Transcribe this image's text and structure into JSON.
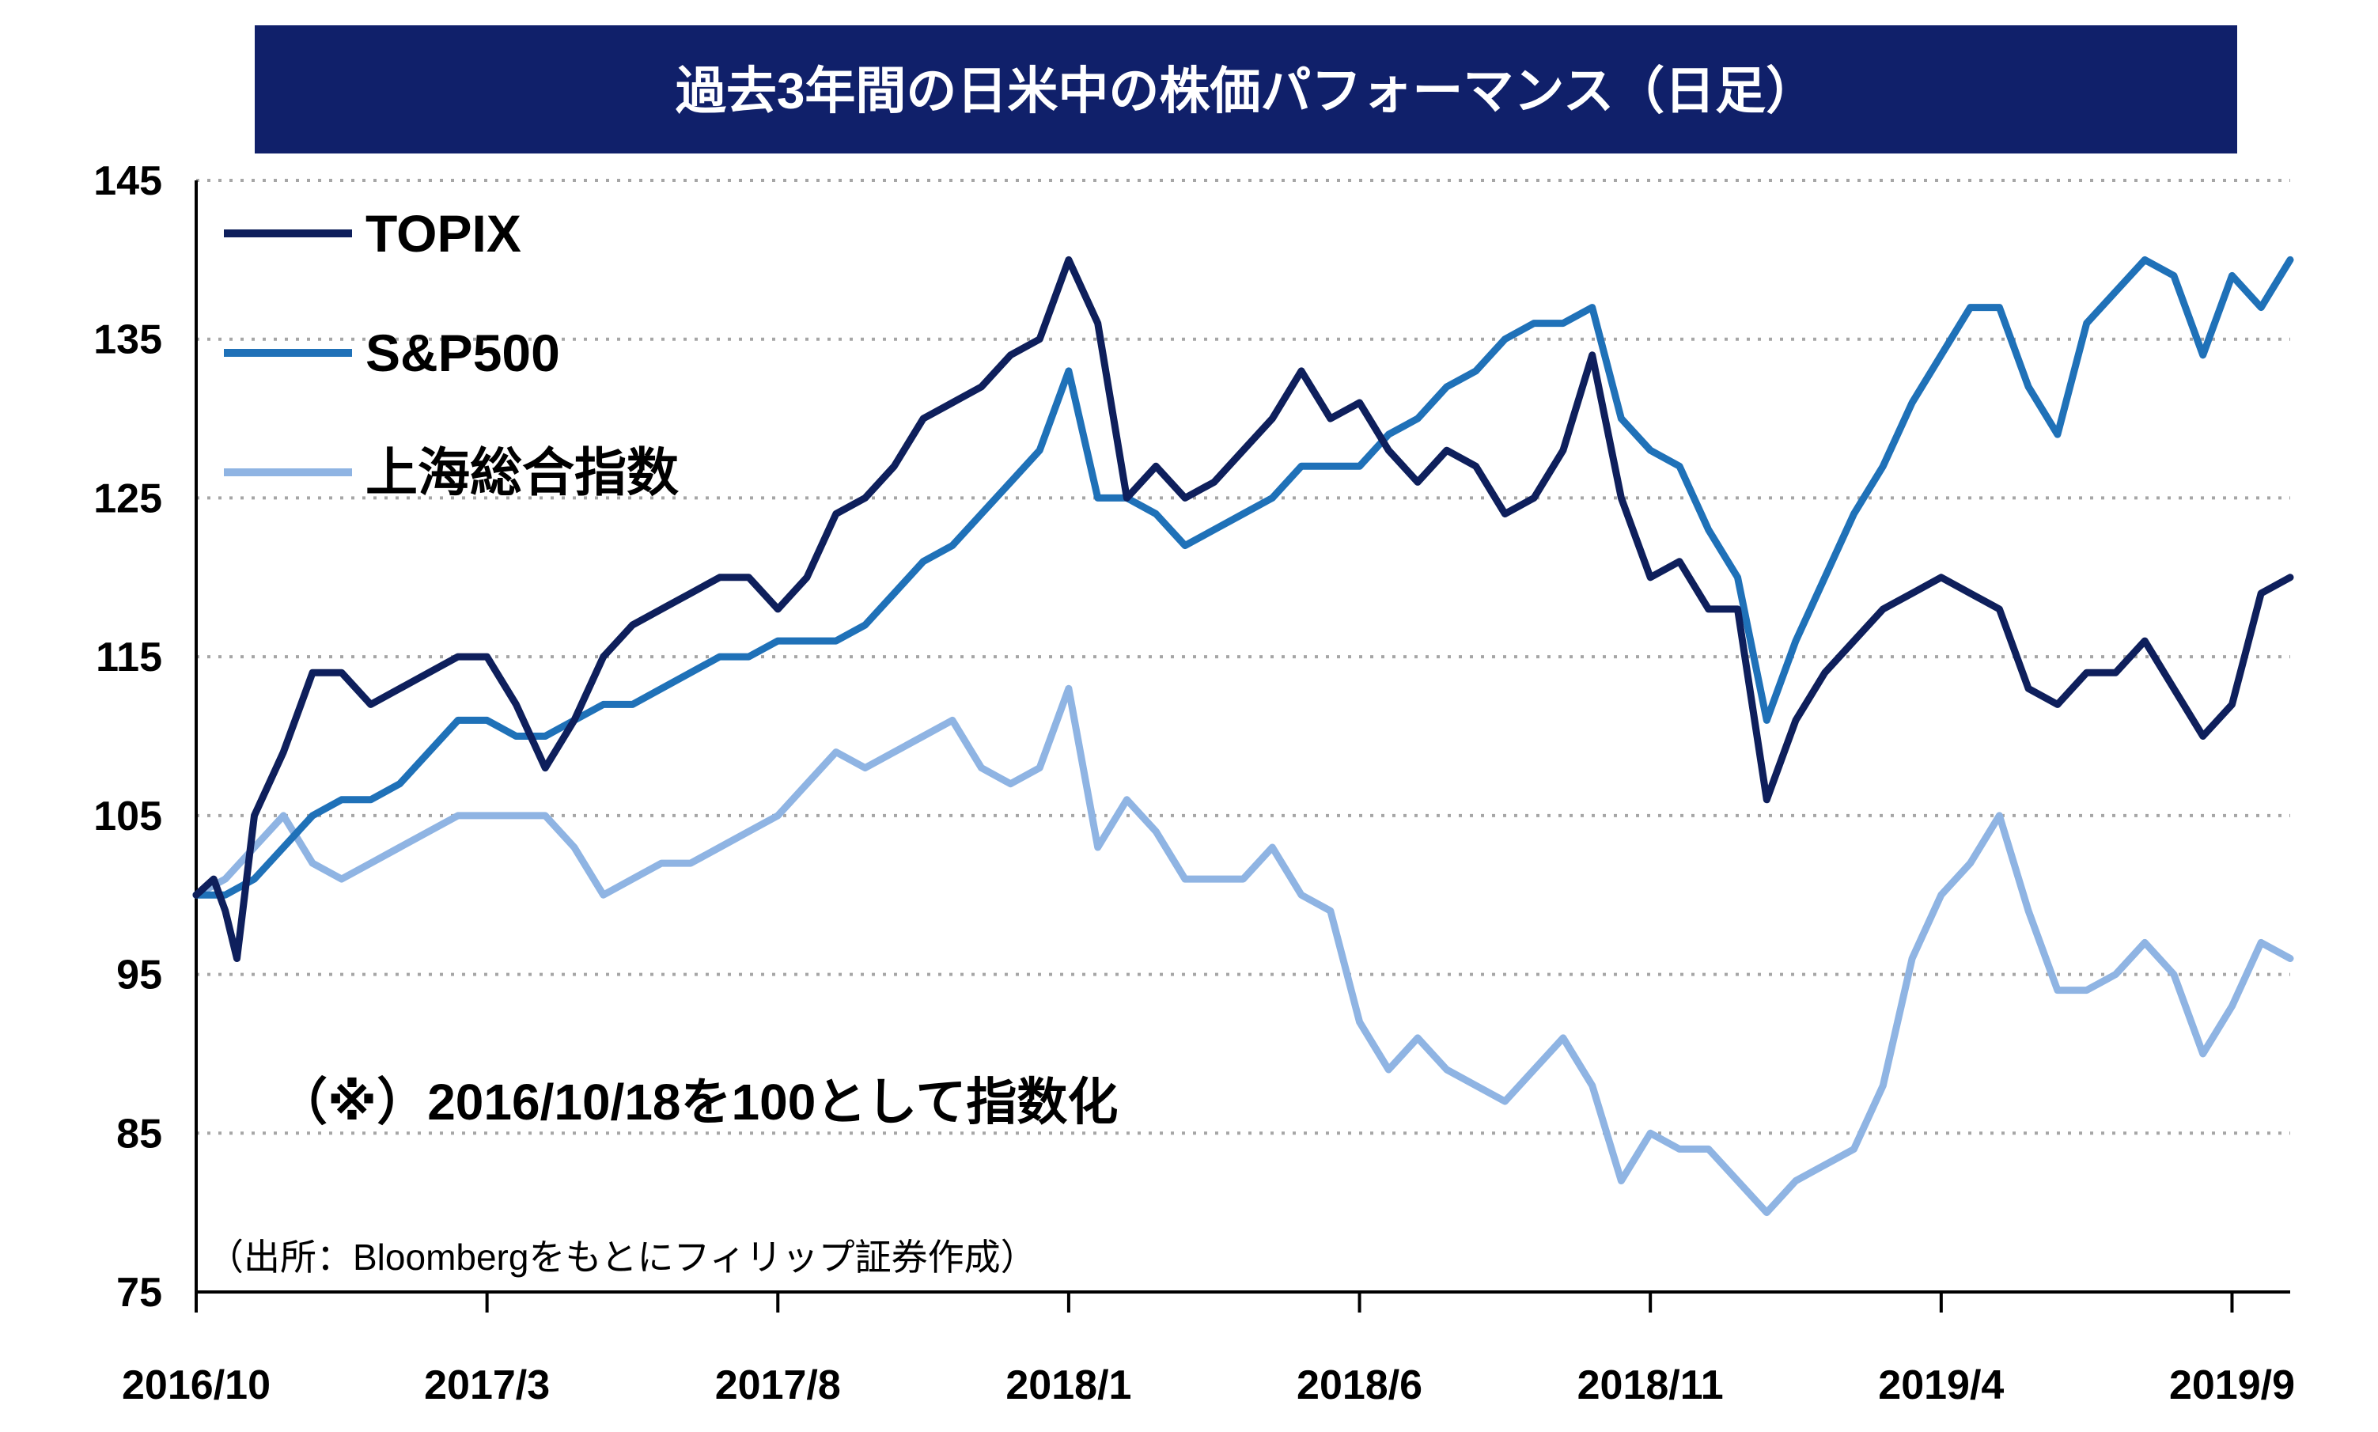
{
  "chart_data": {
    "type": "line",
    "title": "過去3年間の日米中の株価パフォーマンス（日足）",
    "note": "（※）2016/10/18を100として指数化",
    "source": "（出所：Bloombergをもとにフィリップ証券作成）",
    "xlabel": "",
    "ylabel": "",
    "ylim": [
      75,
      145
    ],
    "yticks": [
      75,
      85,
      95,
      105,
      115,
      125,
      135,
      145
    ],
    "ytick_labels": [
      "75",
      "85",
      "95",
      "105",
      "115",
      "125",
      "135",
      "145"
    ],
    "xlim": [
      0,
      36
    ],
    "xticks": [
      0,
      5,
      10,
      15,
      20,
      25,
      30,
      35
    ],
    "xtick_labels": [
      "2016/10",
      "2017/3",
      "2017/8",
      "2018/1",
      "2018/6",
      "2018/11",
      "2019/4",
      "2019/9"
    ],
    "grid": "horizontal dotted",
    "legend_position": "top-left",
    "colors": {
      "title_background": "#10206a",
      "grid": "#a6a6a6",
      "axis": "#000000"
    },
    "series": [
      {
        "name": "TOPIX",
        "color": "#0e1f5c",
        "points": [
          [
            0,
            100
          ],
          [
            0.3,
            101
          ],
          [
            0.5,
            99
          ],
          [
            0.7,
            96
          ],
          [
            1.0,
            105
          ],
          [
            1.5,
            109
          ],
          [
            1.8,
            112
          ],
          [
            2.0,
            114
          ],
          [
            2.5,
            114
          ],
          [
            3.0,
            112
          ],
          [
            3.5,
            113
          ],
          [
            4.0,
            114
          ],
          [
            4.5,
            115
          ],
          [
            5.0,
            115
          ],
          [
            5.5,
            112
          ],
          [
            6.0,
            108
          ],
          [
            6.5,
            111
          ],
          [
            7.0,
            115
          ],
          [
            7.5,
            117
          ],
          [
            8.0,
            118
          ],
          [
            8.5,
            119
          ],
          [
            9.0,
            120
          ],
          [
            9.5,
            120
          ],
          [
            10.0,
            118
          ],
          [
            10.5,
            120
          ],
          [
            11.0,
            124
          ],
          [
            11.5,
            125
          ],
          [
            12.0,
            127
          ],
          [
            12.5,
            130
          ],
          [
            13.0,
            131
          ],
          [
            13.5,
            132
          ],
          [
            14.0,
            134
          ],
          [
            14.5,
            135
          ],
          [
            15.0,
            140
          ],
          [
            15.5,
            136
          ],
          [
            16.0,
            125
          ],
          [
            16.5,
            127
          ],
          [
            17.0,
            125
          ],
          [
            17.5,
            126
          ],
          [
            18.0,
            128
          ],
          [
            18.5,
            130
          ],
          [
            19.0,
            133
          ],
          [
            19.5,
            130
          ],
          [
            20.0,
            131
          ],
          [
            20.5,
            128
          ],
          [
            21.0,
            126
          ],
          [
            21.5,
            128
          ],
          [
            22.0,
            127
          ],
          [
            22.5,
            124
          ],
          [
            23.0,
            125
          ],
          [
            23.5,
            128
          ],
          [
            24.0,
            134
          ],
          [
            24.5,
            125
          ],
          [
            25.0,
            120
          ],
          [
            25.5,
            121
          ],
          [
            26.0,
            118
          ],
          [
            26.5,
            118
          ],
          [
            27.0,
            106
          ],
          [
            27.5,
            111
          ],
          [
            28.0,
            114
          ],
          [
            28.5,
            116
          ],
          [
            29.0,
            118
          ],
          [
            29.5,
            119
          ],
          [
            30.0,
            120
          ],
          [
            30.5,
            119
          ],
          [
            31.0,
            118
          ],
          [
            31.5,
            113
          ],
          [
            32.0,
            112
          ],
          [
            32.5,
            114
          ],
          [
            33.0,
            114
          ],
          [
            33.5,
            116
          ],
          [
            34.0,
            113
          ],
          [
            34.5,
            110
          ],
          [
            35.0,
            112
          ],
          [
            35.5,
            119
          ],
          [
            36.0,
            120
          ]
        ]
      },
      {
        "name": "S&P500",
        "color": "#1f71b8",
        "points": [
          [
            0,
            100
          ],
          [
            0.5,
            100
          ],
          [
            1.0,
            101
          ],
          [
            1.5,
            103
          ],
          [
            2.0,
            105
          ],
          [
            2.5,
            106
          ],
          [
            3.0,
            106
          ],
          [
            3.5,
            107
          ],
          [
            4.0,
            109
          ],
          [
            4.5,
            111
          ],
          [
            5.0,
            111
          ],
          [
            5.5,
            110
          ],
          [
            6.0,
            110
          ],
          [
            6.5,
            111
          ],
          [
            7.0,
            112
          ],
          [
            7.5,
            112
          ],
          [
            8.0,
            113
          ],
          [
            8.5,
            114
          ],
          [
            9.0,
            115
          ],
          [
            9.5,
            115
          ],
          [
            10.0,
            116
          ],
          [
            10.5,
            116
          ],
          [
            11.0,
            116
          ],
          [
            11.5,
            117
          ],
          [
            12.0,
            119
          ],
          [
            12.5,
            121
          ],
          [
            13.0,
            122
          ],
          [
            13.5,
            124
          ],
          [
            14.0,
            126
          ],
          [
            14.5,
            128
          ],
          [
            15.0,
            133
          ],
          [
            15.5,
            125
          ],
          [
            16.0,
            125
          ],
          [
            16.5,
            124
          ],
          [
            17.0,
            122
          ],
          [
            17.5,
            123
          ],
          [
            18.0,
            124
          ],
          [
            18.5,
            125
          ],
          [
            19.0,
            127
          ],
          [
            19.5,
            127
          ],
          [
            20.0,
            127
          ],
          [
            20.5,
            129
          ],
          [
            21.0,
            130
          ],
          [
            21.5,
            132
          ],
          [
            22.0,
            133
          ],
          [
            22.5,
            135
          ],
          [
            23.0,
            136
          ],
          [
            23.5,
            136
          ],
          [
            24.0,
            137
          ],
          [
            24.5,
            130
          ],
          [
            25.0,
            128
          ],
          [
            25.5,
            127
          ],
          [
            26.0,
            123
          ],
          [
            26.5,
            120
          ],
          [
            27.0,
            111
          ],
          [
            27.5,
            116
          ],
          [
            28.0,
            120
          ],
          [
            28.5,
            124
          ],
          [
            29.0,
            127
          ],
          [
            29.5,
            131
          ],
          [
            30.0,
            134
          ],
          [
            30.5,
            137
          ],
          [
            31.0,
            137
          ],
          [
            31.5,
            132
          ],
          [
            32.0,
            129
          ],
          [
            32.5,
            136
          ],
          [
            33.0,
            138
          ],
          [
            33.5,
            140
          ],
          [
            34.0,
            139
          ],
          [
            34.5,
            134
          ],
          [
            35.0,
            139
          ],
          [
            35.5,
            137
          ],
          [
            36.0,
            140
          ]
        ]
      },
      {
        "name": "上海総合指数",
        "color": "#8fb4e3",
        "points": [
          [
            0,
            100
          ],
          [
            0.5,
            101
          ],
          [
            1.0,
            103
          ],
          [
            1.5,
            105
          ],
          [
            2.0,
            102
          ],
          [
            2.5,
            101
          ],
          [
            3.0,
            102
          ],
          [
            3.5,
            103
          ],
          [
            4.0,
            104
          ],
          [
            4.5,
            105
          ],
          [
            5.0,
            105
          ],
          [
            5.5,
            105
          ],
          [
            6.0,
            105
          ],
          [
            6.5,
            103
          ],
          [
            7.0,
            100
          ],
          [
            7.5,
            101
          ],
          [
            8.0,
            102
          ],
          [
            8.5,
            102
          ],
          [
            9.0,
            103
          ],
          [
            9.5,
            104
          ],
          [
            10.0,
            105
          ],
          [
            10.5,
            107
          ],
          [
            11.0,
            109
          ],
          [
            11.5,
            108
          ],
          [
            12.0,
            109
          ],
          [
            12.5,
            110
          ],
          [
            13.0,
            111
          ],
          [
            13.5,
            108
          ],
          [
            14.0,
            107
          ],
          [
            14.5,
            108
          ],
          [
            15.0,
            113
          ],
          [
            15.5,
            103
          ],
          [
            16.0,
            106
          ],
          [
            16.5,
            104
          ],
          [
            17.0,
            101
          ],
          [
            17.5,
            101
          ],
          [
            18.0,
            101
          ],
          [
            18.5,
            103
          ],
          [
            19.0,
            100
          ],
          [
            19.5,
            99
          ],
          [
            20.0,
            92
          ],
          [
            20.5,
            89
          ],
          [
            21.0,
            91
          ],
          [
            21.5,
            89
          ],
          [
            22.0,
            88
          ],
          [
            22.5,
            87
          ],
          [
            23.0,
            89
          ],
          [
            23.5,
            91
          ],
          [
            24.0,
            88
          ],
          [
            24.5,
            82
          ],
          [
            25.0,
            85
          ],
          [
            25.5,
            84
          ],
          [
            26.0,
            84
          ],
          [
            26.5,
            82
          ],
          [
            27.0,
            80
          ],
          [
            27.5,
            82
          ],
          [
            28.0,
            83
          ],
          [
            28.5,
            84
          ],
          [
            29.0,
            88
          ],
          [
            29.5,
            96
          ],
          [
            30.0,
            100
          ],
          [
            30.5,
            102
          ],
          [
            31.0,
            105
          ],
          [
            31.5,
            99
          ],
          [
            32.0,
            94
          ],
          [
            32.5,
            94
          ],
          [
            33.0,
            95
          ],
          [
            33.5,
            97
          ],
          [
            34.0,
            95
          ],
          [
            34.5,
            90
          ],
          [
            35.0,
            93
          ],
          [
            35.5,
            97
          ],
          [
            36.0,
            96
          ]
        ]
      }
    ]
  }
}
